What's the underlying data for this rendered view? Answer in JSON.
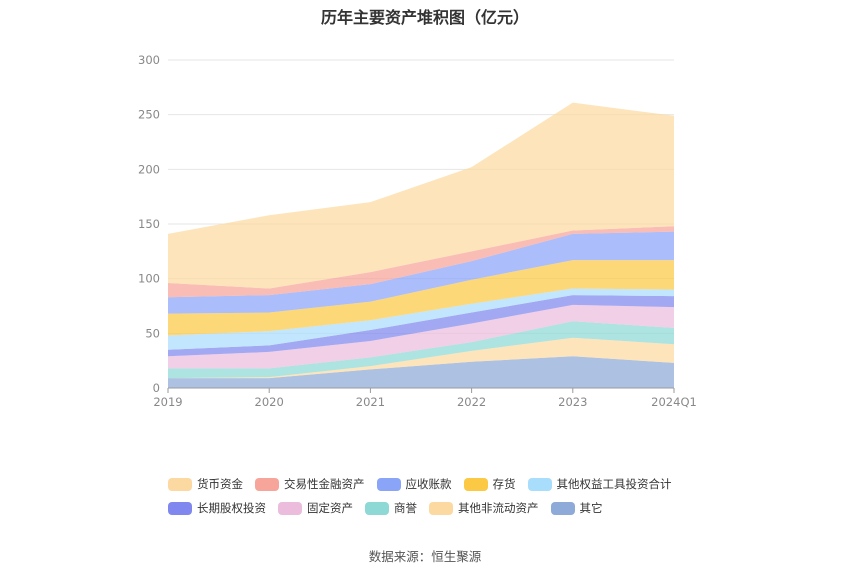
{
  "chart_data": {
    "type": "area",
    "stacked": true,
    "title": "历年主要资产堆积图（亿元）",
    "categories": [
      "2019",
      "2020",
      "2021",
      "2022",
      "2023",
      "2024Q1"
    ],
    "ylim": [
      0,
      300
    ],
    "yticks": [
      0,
      50,
      100,
      150,
      200,
      250,
      300
    ],
    "grid": true,
    "legend_position": "bottom",
    "series": [
      {
        "name": "其它",
        "color": "#8eaad8",
        "values": [
          9,
          9,
          17,
          24,
          29,
          23
        ]
      },
      {
        "name": "其他非流动资产",
        "color": "#fcd9a0",
        "values": [
          0,
          1,
          3,
          10,
          17,
          17
        ]
      },
      {
        "name": "商誉",
        "color": "#8ed8d6",
        "values": [
          9,
          8,
          8,
          8,
          15,
          15
        ]
      },
      {
        "name": "固定资产",
        "color": "#ebbcdc",
        "values": [
          11,
          15,
          15,
          17,
          15,
          19
        ]
      },
      {
        "name": "长期股权投资",
        "color": "#8087ee",
        "values": [
          6,
          6,
          10,
          10,
          9,
          10
        ]
      },
      {
        "name": "其他权益工具投资合计",
        "color": "#a9ddfc",
        "values": [
          13,
          13,
          9,
          8,
          6,
          6
        ]
      },
      {
        "name": "存货",
        "color": "#fcc945",
        "values": [
          20,
          17,
          17,
          22,
          26,
          27
        ]
      },
      {
        "name": "应收账款",
        "color": "#8aa4f8",
        "values": [
          15,
          16,
          16,
          17,
          24,
          26
        ]
      },
      {
        "name": "交易性金融资产",
        "color": "#f7a49a",
        "values": [
          13,
          6,
          11,
          9,
          3,
          5
        ]
      },
      {
        "name": "货币资金",
        "color": "#fcd9a0",
        "values": [
          45,
          67,
          64,
          77,
          117,
          101
        ]
      }
    ],
    "legend_order": [
      "货币资金",
      "交易性金融资产",
      "应收账款",
      "存货",
      "其他权益工具投资合计",
      "长期股权投资",
      "固定资产",
      "商誉",
      "其他非流动资产",
      "其它"
    ]
  },
  "source_text": "数据来源：恒生聚源"
}
